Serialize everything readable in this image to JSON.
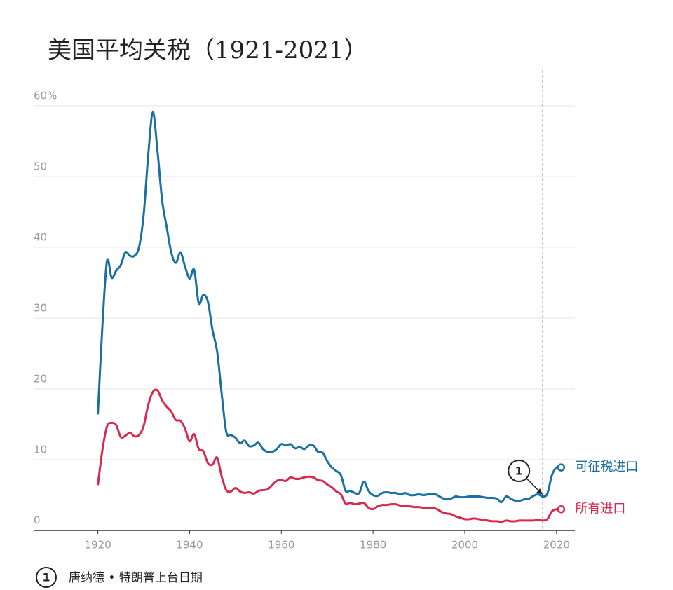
{
  "chart_data": {
    "type": "line",
    "title": "美国平均关税（1921-2021）",
    "x": [
      1920,
      1921,
      1922,
      1923,
      1924,
      1925,
      1926,
      1927,
      1928,
      1929,
      1930,
      1931,
      1932,
      1933,
      1934,
      1935,
      1936,
      1937,
      1938,
      1939,
      1940,
      1941,
      1942,
      1943,
      1944,
      1945,
      1946,
      1947,
      1948,
      1949,
      1950,
      1951,
      1952,
      1953,
      1954,
      1955,
      1956,
      1957,
      1958,
      1959,
      1960,
      1961,
      1962,
      1963,
      1964,
      1965,
      1966,
      1967,
      1968,
      1969,
      1970,
      1971,
      1972,
      1973,
      1974,
      1975,
      1976,
      1977,
      1978,
      1979,
      1980,
      1981,
      1982,
      1983,
      1984,
      1985,
      1986,
      1987,
      1988,
      1989,
      1990,
      1991,
      1992,
      1993,
      1994,
      1995,
      1996,
      1997,
      1998,
      1999,
      2000,
      2001,
      2002,
      2003,
      2004,
      2005,
      2006,
      2007,
      2008,
      2009,
      2010,
      2011,
      2012,
      2013,
      2014,
      2015,
      2016,
      2017,
      2018,
      2019,
      2020,
      2021
    ],
    "series": [
      {
        "name": "可征税进口",
        "color": "#1b6fa3",
        "values": [
          16.4,
          29,
          38.1,
          35.7,
          36.7,
          37.5,
          39.3,
          38.8,
          38.8,
          40.1,
          44.7,
          53.2,
          59.1,
          53.6,
          46.7,
          42.9,
          39.3,
          37.8,
          39.3,
          37.3,
          35.6,
          36.8,
          32.1,
          33.3,
          32.3,
          28.3,
          25.3,
          19.3,
          13.9,
          13.5,
          13.1,
          12.3,
          12.7,
          11.9,
          12.0,
          12.4,
          11.5,
          11.1,
          11.1,
          11.5,
          12.2,
          12.0,
          12.2,
          11.6,
          11.8,
          11.5,
          12.0,
          12.0,
          11.1,
          11.0,
          9.8,
          8.9,
          8.4,
          7.8,
          5.6,
          5.6,
          5.3,
          5.3,
          6.9,
          5.6,
          5.0,
          4.9,
          5.3,
          5.4,
          5.3,
          5.3,
          5.1,
          5.3,
          5.0,
          5.0,
          5.1,
          5.0,
          5.1,
          5.2,
          5.0,
          4.6,
          4.4,
          4.5,
          4.8,
          4.7,
          4.7,
          4.8,
          4.8,
          4.8,
          4.7,
          4.6,
          4.6,
          4.5,
          4.0,
          4.8,
          4.5,
          4.2,
          4.2,
          4.4,
          4.5,
          4.9,
          5.1,
          4.8,
          5.2,
          7.8,
          8.9,
          8.9
        ]
      },
      {
        "name": "所有进口",
        "color": "#d62a4e",
        "values": [
          6.4,
          11.4,
          14.7,
          15.2,
          14.9,
          13.2,
          13.4,
          13.8,
          13.3,
          13.5,
          14.8,
          17.8,
          19.6,
          19.8,
          18.4,
          17.5,
          16.8,
          15.6,
          15.5,
          14.4,
          12.6,
          13.6,
          11.5,
          11.2,
          9.5,
          9.3,
          10.3,
          7.6,
          5.7,
          5.5,
          6.0,
          5.5,
          5.3,
          5.4,
          5.2,
          5.6,
          5.7,
          5.8,
          6.4,
          7.0,
          7.1,
          7.0,
          7.5,
          7.3,
          7.3,
          7.5,
          7.6,
          7.5,
          7.1,
          7.0,
          6.5,
          6.1,
          5.5,
          5.1,
          3.8,
          3.9,
          3.7,
          3.8,
          3.9,
          3.2,
          3.0,
          3.4,
          3.6,
          3.6,
          3.7,
          3.7,
          3.5,
          3.5,
          3.4,
          3.3,
          3.3,
          3.2,
          3.2,
          3.2,
          3.0,
          2.6,
          2.4,
          2.3,
          2.0,
          1.8,
          1.6,
          1.6,
          1.7,
          1.6,
          1.5,
          1.4,
          1.3,
          1.3,
          1.2,
          1.4,
          1.3,
          1.3,
          1.4,
          1.4,
          1.4,
          1.4,
          1.5,
          1.4,
          1.6,
          2.7,
          3.0,
          3.0
        ]
      }
    ],
    "xlim": [
      1906,
      2024
    ],
    "xticks": [
      1920,
      1940,
      1960,
      1980,
      2000,
      2020
    ],
    "ylim": [
      0,
      60
    ],
    "yticks": [
      0,
      10,
      20,
      30,
      40,
      50,
      {
        "value": 60,
        "label": "60%"
      }
    ],
    "grid": true,
    "annotations": [
      {
        "x": 2017,
        "label": "1",
        "text": "唐纳德 • 特朗普上台日期"
      }
    ]
  }
}
